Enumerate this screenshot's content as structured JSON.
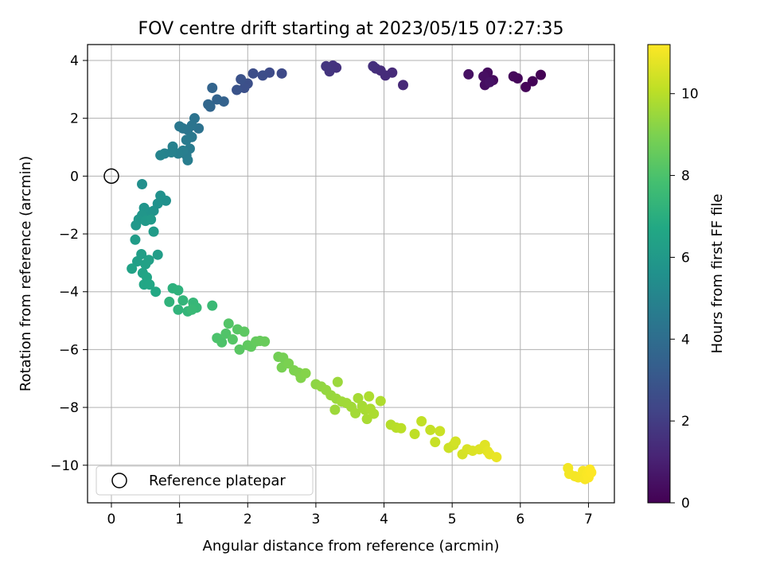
{
  "chart_data": {
    "type": "scatter",
    "title": "FOV centre drift starting at 2023/05/15 07:27:35",
    "xlabel": "Angular distance from reference (arcmin)",
    "ylabel": "Rotation from reference (arcmin)",
    "xlim": [
      -0.35,
      7.38
    ],
    "ylim": [
      -11.3,
      4.55
    ],
    "xticks": [
      0,
      1,
      2,
      3,
      4,
      5,
      6,
      7
    ],
    "yticks": [
      -10,
      -8,
      -6,
      -4,
      -2,
      0,
      2,
      4
    ],
    "grid": true,
    "legend": {
      "placement": "lower-left",
      "entries": [
        "Reference platepar"
      ]
    },
    "reference_point": {
      "label": "Reference platepar",
      "x": 0,
      "y": 0
    },
    "colorbar": {
      "label": "Hours from first FF file",
      "colormap": "viridis",
      "range": [
        0,
        11.2
      ],
      "ticks": [
        0,
        2,
        4,
        6,
        8,
        10
      ]
    },
    "series": [
      {
        "c_unit": "hours",
        "points": [
          {
            "x": 6.3,
            "y": 3.5,
            "c": 0.05
          },
          {
            "x": 6.18,
            "y": 3.28,
            "c": 0.1
          },
          {
            "x": 6.08,
            "y": 3.08,
            "c": 0.15
          },
          {
            "x": 5.96,
            "y": 3.38,
            "c": 0.2
          },
          {
            "x": 5.9,
            "y": 3.45,
            "c": 0.25
          },
          {
            "x": 5.6,
            "y": 3.32,
            "c": 0.3
          },
          {
            "x": 5.52,
            "y": 3.58,
            "c": 0.35
          },
          {
            "x": 5.48,
            "y": 3.15,
            "c": 0.4
          },
          {
            "x": 5.46,
            "y": 3.45,
            "c": 0.45
          },
          {
            "x": 5.24,
            "y": 3.52,
            "c": 0.5
          },
          {
            "x": 5.55,
            "y": 3.25,
            "c": 0.55
          },
          {
            "x": 4.28,
            "y": 3.15,
            "c": 1.3
          },
          {
            "x": 4.12,
            "y": 3.58,
            "c": 1.35
          },
          {
            "x": 4.02,
            "y": 3.48,
            "c": 1.4
          },
          {
            "x": 3.95,
            "y": 3.65,
            "c": 1.45
          },
          {
            "x": 3.88,
            "y": 3.72,
            "c": 1.5
          },
          {
            "x": 3.84,
            "y": 3.8,
            "c": 1.55
          },
          {
            "x": 3.3,
            "y": 3.75,
            "c": 1.6
          },
          {
            "x": 3.25,
            "y": 3.82,
            "c": 1.65
          },
          {
            "x": 3.2,
            "y": 3.62,
            "c": 1.7
          },
          {
            "x": 3.15,
            "y": 3.8,
            "c": 1.75
          },
          {
            "x": 2.5,
            "y": 3.55,
            "c": 2.5
          },
          {
            "x": 2.32,
            "y": 3.58,
            "c": 2.55
          },
          {
            "x": 2.22,
            "y": 3.48,
            "c": 2.6
          },
          {
            "x": 2.08,
            "y": 3.55,
            "c": 2.65
          },
          {
            "x": 2.0,
            "y": 3.2,
            "c": 2.7
          },
          {
            "x": 1.95,
            "y": 3.05,
            "c": 2.75
          },
          {
            "x": 1.9,
            "y": 3.35,
            "c": 2.8
          },
          {
            "x": 1.84,
            "y": 2.98,
            "c": 2.85
          },
          {
            "x": 1.65,
            "y": 2.58,
            "c": 3.5
          },
          {
            "x": 1.55,
            "y": 2.65,
            "c": 3.55
          },
          {
            "x": 1.48,
            "y": 3.05,
            "c": 3.6
          },
          {
            "x": 1.45,
            "y": 2.4,
            "c": 3.65
          },
          {
            "x": 1.42,
            "y": 2.48,
            "c": 3.7
          },
          {
            "x": 1.28,
            "y": 1.65,
            "c": 4.2
          },
          {
            "x": 1.22,
            "y": 2.0,
            "c": 4.25
          },
          {
            "x": 1.18,
            "y": 1.75,
            "c": 4.3
          },
          {
            "x": 1.12,
            "y": 1.6,
            "c": 4.35
          },
          {
            "x": 1.05,
            "y": 1.65,
            "c": 4.4
          },
          {
            "x": 1.0,
            "y": 1.72,
            "c": 4.45
          },
          {
            "x": 1.18,
            "y": 1.35,
            "c": 4.5
          },
          {
            "x": 1.1,
            "y": 1.25,
            "c": 4.55
          },
          {
            "x": 1.15,
            "y": 0.95,
            "c": 4.6
          },
          {
            "x": 1.1,
            "y": 0.72,
            "c": 4.65
          },
          {
            "x": 1.12,
            "y": 0.55,
            "c": 4.7
          },
          {
            "x": 1.05,
            "y": 0.88,
            "c": 4.75
          },
          {
            "x": 0.98,
            "y": 0.78,
            "c": 4.8
          },
          {
            "x": 0.9,
            "y": 1.02,
            "c": 4.85
          },
          {
            "x": 0.88,
            "y": 0.82,
            "c": 4.9
          },
          {
            "x": 0.78,
            "y": 0.78,
            "c": 4.95
          },
          {
            "x": 0.72,
            "y": 0.72,
            "c": 5.0
          },
          {
            "x": 0.45,
            "y": -0.28,
            "c": 5.5
          },
          {
            "x": 0.8,
            "y": -0.85,
            "c": 5.55
          },
          {
            "x": 0.72,
            "y": -0.68,
            "c": 5.6
          },
          {
            "x": 0.68,
            "y": -0.95,
            "c": 5.65
          },
          {
            "x": 0.62,
            "y": -1.2,
            "c": 5.7
          },
          {
            "x": 0.55,
            "y": -1.25,
            "c": 5.75
          },
          {
            "x": 0.48,
            "y": -1.1,
            "c": 5.8
          },
          {
            "x": 0.45,
            "y": -1.35,
            "c": 5.85
          },
          {
            "x": 0.4,
            "y": -1.5,
            "c": 5.9
          },
          {
            "x": 0.36,
            "y": -1.7,
            "c": 5.95
          },
          {
            "x": 0.5,
            "y": -1.55,
            "c": 6.0
          },
          {
            "x": 0.58,
            "y": -1.5,
            "c": 6.05
          },
          {
            "x": 0.62,
            "y": -1.92,
            "c": 6.1
          },
          {
            "x": 0.35,
            "y": -2.2,
            "c": 6.15
          },
          {
            "x": 0.68,
            "y": -2.72,
            "c": 6.2
          },
          {
            "x": 0.44,
            "y": -2.7,
            "c": 6.25
          },
          {
            "x": 0.38,
            "y": -2.95,
            "c": 6.3
          },
          {
            "x": 0.55,
            "y": -2.9,
            "c": 6.35
          },
          {
            "x": 0.5,
            "y": -3.05,
            "c": 6.4
          },
          {
            "x": 0.3,
            "y": -3.2,
            "c": 6.45
          },
          {
            "x": 0.46,
            "y": -3.35,
            "c": 6.5
          },
          {
            "x": 0.52,
            "y": -3.5,
            "c": 6.55
          },
          {
            "x": 0.48,
            "y": -3.75,
            "c": 6.6
          },
          {
            "x": 0.56,
            "y": -3.75,
            "c": 6.65
          },
          {
            "x": 0.65,
            "y": -4.0,
            "c": 6.7
          },
          {
            "x": 0.9,
            "y": -3.88,
            "c": 7.1
          },
          {
            "x": 0.98,
            "y": -3.95,
            "c": 7.15
          },
          {
            "x": 0.85,
            "y": -4.35,
            "c": 7.2
          },
          {
            "x": 0.98,
            "y": -4.62,
            "c": 7.25
          },
          {
            "x": 1.05,
            "y": -4.3,
            "c": 7.3
          },
          {
            "x": 1.12,
            "y": -4.68,
            "c": 7.35
          },
          {
            "x": 1.2,
            "y": -4.38,
            "c": 7.4
          },
          {
            "x": 1.25,
            "y": -4.55,
            "c": 7.45
          },
          {
            "x": 1.18,
            "y": -4.62,
            "c": 7.5
          },
          {
            "x": 1.48,
            "y": -4.48,
            "c": 7.55
          },
          {
            "x": 1.55,
            "y": -5.6,
            "c": 8.0
          },
          {
            "x": 1.62,
            "y": -5.75,
            "c": 8.05
          },
          {
            "x": 1.68,
            "y": -5.45,
            "c": 8.1
          },
          {
            "x": 1.72,
            "y": -5.1,
            "c": 8.15
          },
          {
            "x": 1.78,
            "y": -5.65,
            "c": 8.2
          },
          {
            "x": 1.85,
            "y": -5.3,
            "c": 8.25
          },
          {
            "x": 1.88,
            "y": -6.0,
            "c": 8.3
          },
          {
            "x": 1.95,
            "y": -5.38,
            "c": 8.35
          },
          {
            "x": 2.0,
            "y": -5.85,
            "c": 8.4
          },
          {
            "x": 2.05,
            "y": -5.9,
            "c": 8.45
          },
          {
            "x": 2.12,
            "y": -5.72,
            "c": 8.5
          },
          {
            "x": 2.18,
            "y": -5.7,
            "c": 8.55
          },
          {
            "x": 2.25,
            "y": -5.72,
            "c": 8.6
          },
          {
            "x": 2.45,
            "y": -6.25,
            "c": 8.8
          },
          {
            "x": 2.52,
            "y": -6.28,
            "c": 8.85
          },
          {
            "x": 2.5,
            "y": -6.62,
            "c": 8.9
          },
          {
            "x": 2.6,
            "y": -6.48,
            "c": 8.95
          },
          {
            "x": 2.68,
            "y": -6.72,
            "c": 9.0
          },
          {
            "x": 2.75,
            "y": -6.8,
            "c": 9.05
          },
          {
            "x": 2.78,
            "y": -6.98,
            "c": 9.1
          },
          {
            "x": 2.85,
            "y": -6.82,
            "c": 9.15
          },
          {
            "x": 3.0,
            "y": -7.2,
            "c": 9.3
          },
          {
            "x": 3.08,
            "y": -7.28,
            "c": 9.35
          },
          {
            "x": 3.15,
            "y": -7.4,
            "c": 9.4
          },
          {
            "x": 3.22,
            "y": -7.58,
            "c": 9.45
          },
          {
            "x": 3.3,
            "y": -7.7,
            "c": 9.5
          },
          {
            "x": 3.32,
            "y": -7.12,
            "c": 9.52
          },
          {
            "x": 3.28,
            "y": -8.08,
            "c": 9.55
          },
          {
            "x": 3.38,
            "y": -7.8,
            "c": 9.58
          },
          {
            "x": 3.45,
            "y": -7.85,
            "c": 9.6
          },
          {
            "x": 3.52,
            "y": -7.98,
            "c": 9.62
          },
          {
            "x": 3.58,
            "y": -8.2,
            "c": 9.65
          },
          {
            "x": 3.62,
            "y": -7.68,
            "c": 9.68
          },
          {
            "x": 3.68,
            "y": -7.95,
            "c": 9.7
          },
          {
            "x": 3.72,
            "y": -8.08,
            "c": 9.72
          },
          {
            "x": 3.75,
            "y": -8.4,
            "c": 9.75
          },
          {
            "x": 3.8,
            "y": -8.05,
            "c": 9.78
          },
          {
            "x": 3.85,
            "y": -8.22,
            "c": 9.8
          },
          {
            "x": 3.78,
            "y": -7.62,
            "c": 9.82
          },
          {
            "x": 3.95,
            "y": -7.78,
            "c": 9.85
          },
          {
            "x": 4.1,
            "y": -8.6,
            "c": 9.95
          },
          {
            "x": 4.18,
            "y": -8.7,
            "c": 10.0
          },
          {
            "x": 4.25,
            "y": -8.72,
            "c": 10.05
          },
          {
            "x": 4.45,
            "y": -8.92,
            "c": 10.1
          },
          {
            "x": 4.55,
            "y": -8.48,
            "c": 10.15
          },
          {
            "x": 4.68,
            "y": -8.78,
            "c": 10.2
          },
          {
            "x": 4.75,
            "y": -9.2,
            "c": 10.25
          },
          {
            "x": 4.82,
            "y": -8.82,
            "c": 10.3
          },
          {
            "x": 4.95,
            "y": -9.4,
            "c": 10.35
          },
          {
            "x": 5.02,
            "y": -9.3,
            "c": 10.4
          },
          {
            "x": 5.05,
            "y": -9.18,
            "c": 10.45
          },
          {
            "x": 5.15,
            "y": -9.62,
            "c": 10.5
          },
          {
            "x": 5.22,
            "y": -9.45,
            "c": 10.55
          },
          {
            "x": 5.3,
            "y": -9.5,
            "c": 10.6
          },
          {
            "x": 5.4,
            "y": -9.45,
            "c": 10.65
          },
          {
            "x": 5.48,
            "y": -9.3,
            "c": 10.7
          },
          {
            "x": 5.52,
            "y": -9.52,
            "c": 10.75
          },
          {
            "x": 5.55,
            "y": -9.62,
            "c": 10.8
          },
          {
            "x": 5.65,
            "y": -9.72,
            "c": 10.85
          },
          {
            "x": 6.7,
            "y": -10.1,
            "c": 11.0
          },
          {
            "x": 6.72,
            "y": -10.3,
            "c": 11.02
          },
          {
            "x": 6.8,
            "y": -10.38,
            "c": 11.04
          },
          {
            "x": 6.85,
            "y": -10.42,
            "c": 11.06
          },
          {
            "x": 6.9,
            "y": -10.35,
            "c": 11.08
          },
          {
            "x": 6.92,
            "y": -10.2,
            "c": 11.1
          },
          {
            "x": 6.95,
            "y": -10.48,
            "c": 11.12
          },
          {
            "x": 6.98,
            "y": -10.3,
            "c": 11.14
          },
          {
            "x": 7.0,
            "y": -10.42,
            "c": 11.16
          },
          {
            "x": 7.02,
            "y": -10.15,
            "c": 11.18
          },
          {
            "x": 7.04,
            "y": -10.25,
            "c": 11.2
          }
        ]
      }
    ]
  }
}
